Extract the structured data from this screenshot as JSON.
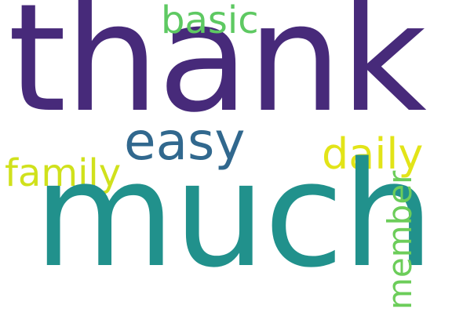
{
  "words": [
    {
      "text": "thank",
      "color": "#472A7A"
    },
    {
      "text": "basic",
      "color": "#5EC962"
    },
    {
      "text": "easy",
      "color": "#31688E"
    },
    {
      "text": "daily",
      "color": "#E2E418"
    },
    {
      "text": "family",
      "color": "#D0E11C"
    },
    {
      "text": "much",
      "color": "#21918C"
    },
    {
      "text": "member",
      "color": "#6CCD5A"
    }
  ]
}
